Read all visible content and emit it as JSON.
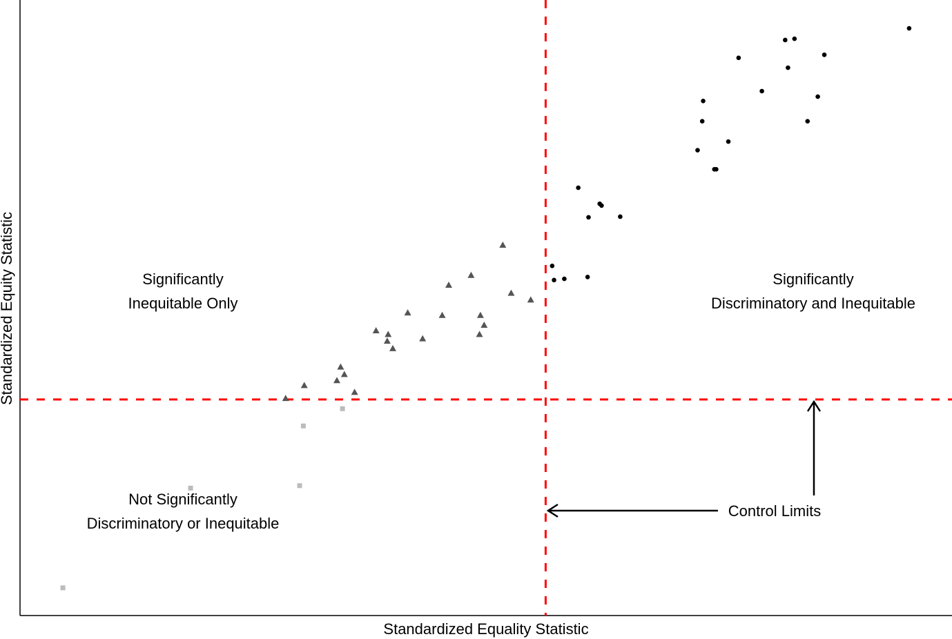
{
  "chart_data": {
    "type": "scatter",
    "title": "",
    "xlabel": "Standardized Equality Statistic",
    "ylabel": "Standardized Equity Statistic",
    "xlim": [
      0,
      10
    ],
    "ylim": [
      0,
      10
    ],
    "grid": false,
    "ticks_shown": false,
    "control_limits": {
      "x": 5.64,
      "y": 3.51,
      "color": "#ff0000",
      "style": "dashed"
    },
    "series": [
      {
        "name": "Significantly Discriminatory and Inequitable",
        "marker": "circle",
        "color": "#000000",
        "points": [
          [
            9.54,
            9.54
          ],
          [
            8.21,
            9.35
          ],
          [
            8.31,
            9.37
          ],
          [
            7.71,
            9.06
          ],
          [
            8.24,
            8.9
          ],
          [
            8.63,
            9.11
          ],
          [
            7.96,
            8.52
          ],
          [
            8.56,
            8.43
          ],
          [
            7.33,
            8.36
          ],
          [
            7.32,
            8.03
          ],
          [
            8.45,
            8.03
          ],
          [
            7.6,
            7.7
          ],
          [
            7.27,
            7.56
          ],
          [
            7.45,
            7.25
          ],
          [
            7.47,
            7.25
          ],
          [
            5.99,
            6.95
          ],
          [
            6.22,
            6.69
          ],
          [
            6.24,
            6.66
          ],
          [
            6.1,
            6.47
          ],
          [
            6.44,
            6.48
          ],
          [
            5.71,
            5.68
          ],
          [
            5.73,
            5.45
          ],
          [
            5.84,
            5.47
          ],
          [
            6.09,
            5.5
          ]
        ]
      },
      {
        "name": "Significantly Inequitable Only",
        "marker": "triangle",
        "color": "#555555",
        "points": [
          [
            5.18,
            6.02
          ],
          [
            4.84,
            5.53
          ],
          [
            4.6,
            5.37
          ],
          [
            5.27,
            5.24
          ],
          [
            5.48,
            5.13
          ],
          [
            4.16,
            4.92
          ],
          [
            4.53,
            4.88
          ],
          [
            4.94,
            4.88
          ],
          [
            4.98,
            4.72
          ],
          [
            3.82,
            4.63
          ],
          [
            3.95,
            4.57
          ],
          [
            3.94,
            4.46
          ],
          [
            4.32,
            4.5
          ],
          [
            4.93,
            4.57
          ],
          [
            4.0,
            4.34
          ],
          [
            3.44,
            4.04
          ],
          [
            3.48,
            3.92
          ],
          [
            3.4,
            3.82
          ],
          [
            3.05,
            3.74
          ],
          [
            3.59,
            3.63
          ],
          [
            2.85,
            3.53
          ]
        ]
      },
      {
        "name": "Not Significantly Discriminatory or Inequitable",
        "marker": "square",
        "color": "#bbbbbb",
        "points": [
          [
            3.46,
            3.36
          ],
          [
            3.04,
            3.08
          ],
          [
            3.0,
            2.11
          ],
          [
            1.83,
            2.07
          ],
          [
            0.46,
            0.45
          ]
        ]
      }
    ],
    "annotations": {
      "upper_left": [
        "Significantly",
        "Inequitable Only"
      ],
      "upper_right": [
        "Significantly",
        "Discriminatory and Inequitable"
      ],
      "lower_left": [
        "Not Significantly",
        "Discriminatory or Inequitable"
      ],
      "control_limits": "Control Limits"
    }
  }
}
